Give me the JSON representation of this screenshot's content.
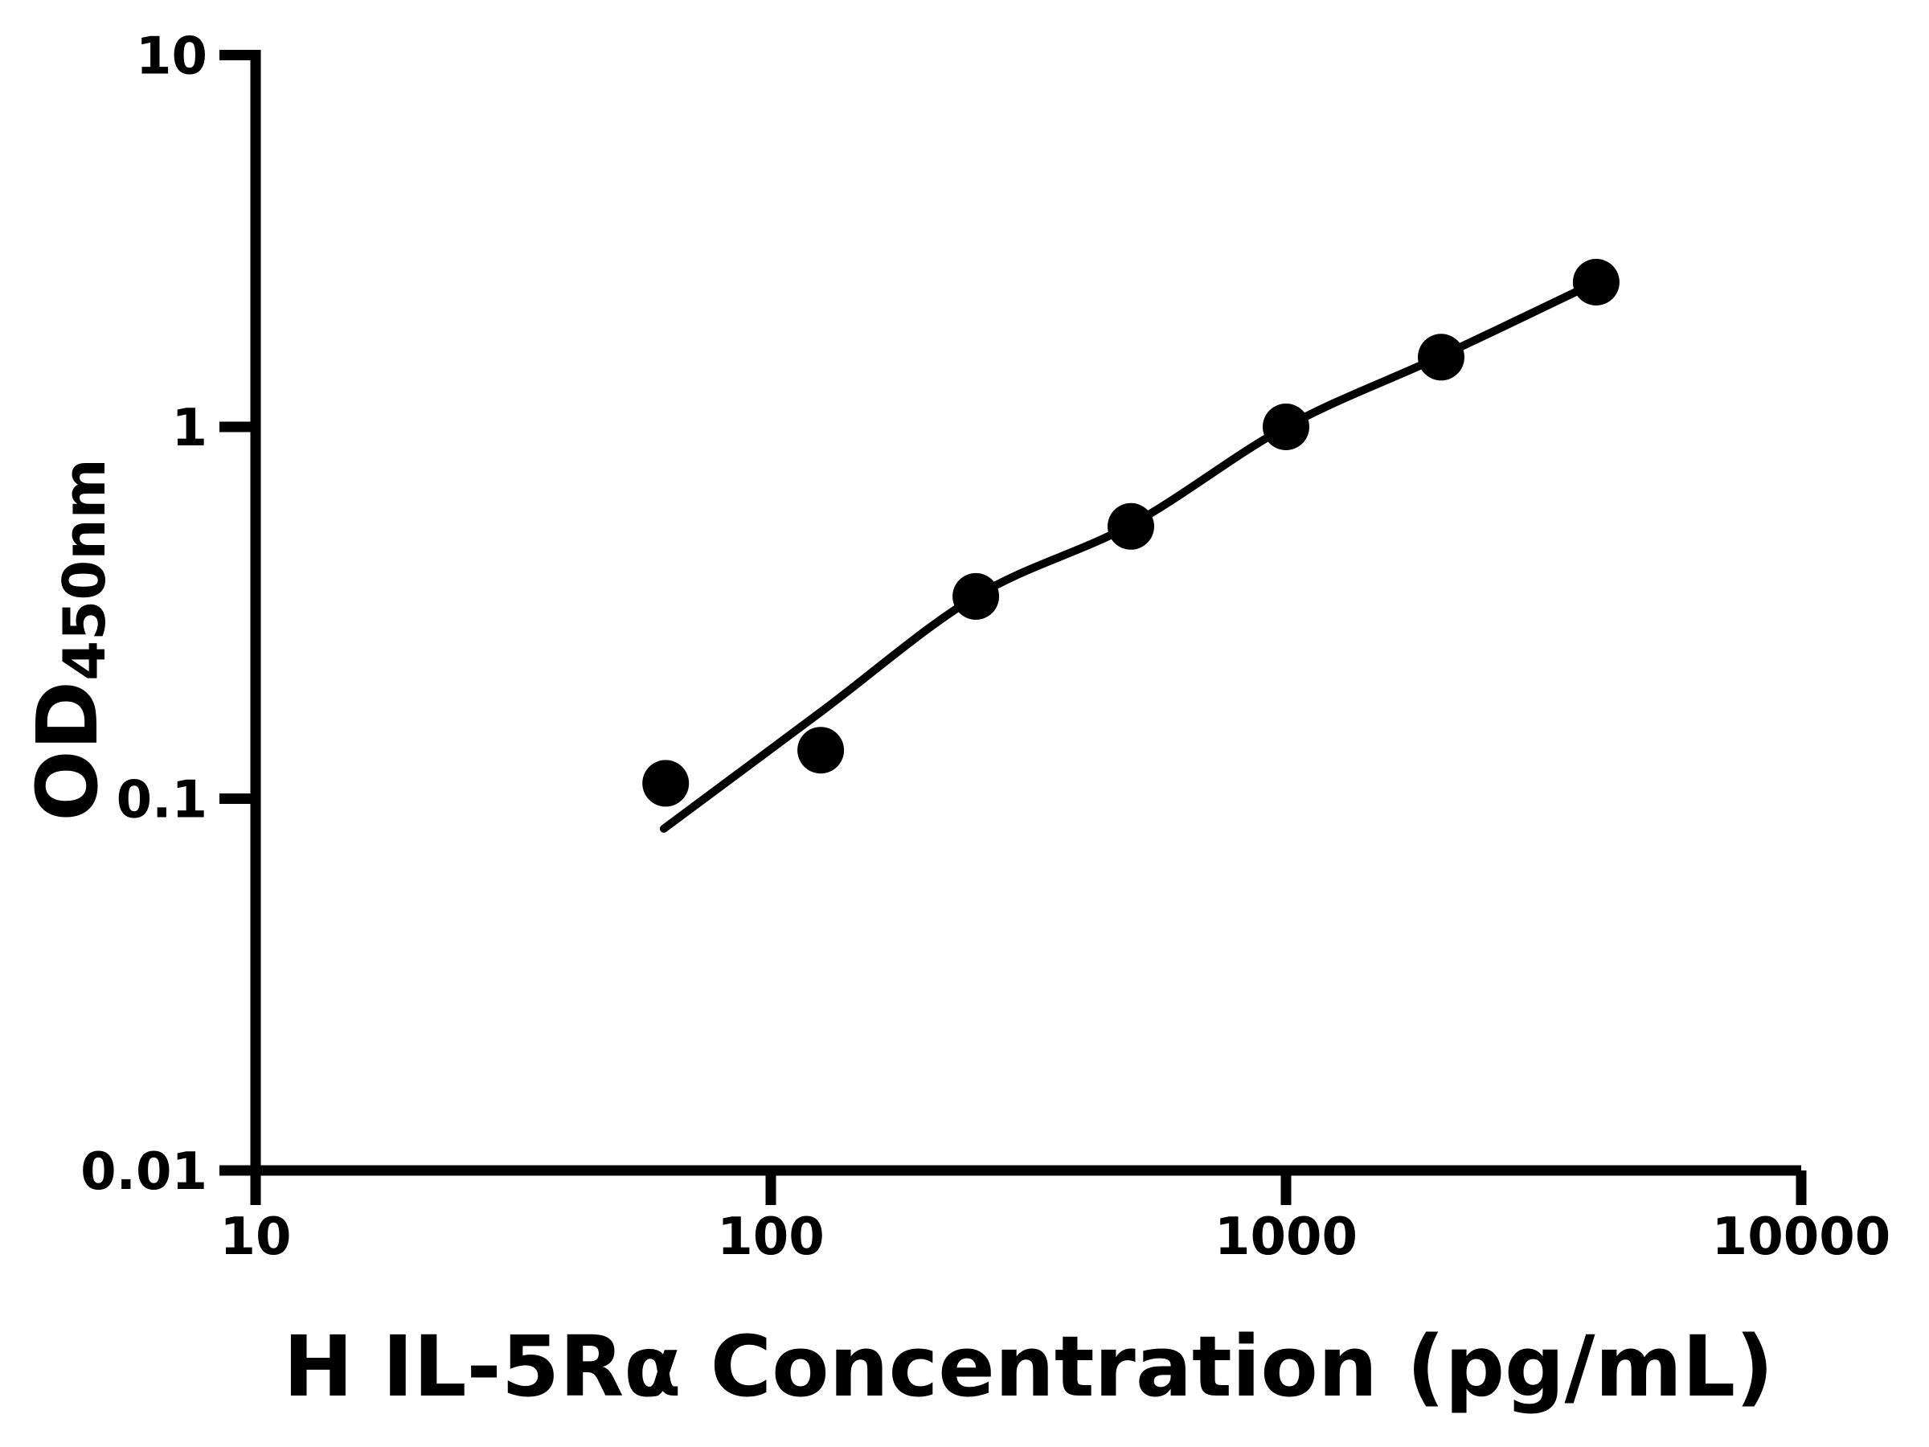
{
  "figure": {
    "background_color": "#ffffff",
    "foreground_color": "#000000"
  },
  "chart_data": {
    "type": "scatter",
    "title": "",
    "xlabel": "H IL-5Rα Concentration (pg/mL)",
    "ylabel": "OD450nm",
    "ylabel_main": "OD",
    "ylabel_sub": "450nm",
    "x_scale": "log",
    "y_scale": "log",
    "xlim": [
      10,
      10000
    ],
    "ylim": [
      0.01,
      10
    ],
    "grid": false,
    "legend_position": "none",
    "x_ticks": [
      {
        "value": 10,
        "label": "10"
      },
      {
        "value": 100,
        "label": "100"
      },
      {
        "value": 1000,
        "label": "1000"
      },
      {
        "value": 10000,
        "label": "10000"
      }
    ],
    "y_ticks": [
      {
        "value": 10,
        "label": "10"
      },
      {
        "value": 1,
        "label": "1"
      },
      {
        "value": 0.1,
        "label": "0.1"
      },
      {
        "value": 0.01,
        "label": "0.01"
      }
    ],
    "series": [
      {
        "name": "standard-points",
        "type": "scatter",
        "marker": "filled-circle",
        "color": "#000000",
        "points": [
          [
            62.5,
            0.11
          ],
          [
            125,
            0.135
          ],
          [
            250,
            0.35
          ],
          [
            500,
            0.54
          ],
          [
            1000,
            1.0
          ],
          [
            2000,
            1.54
          ],
          [
            4000,
            2.45
          ]
        ]
      },
      {
        "name": "fit-curve",
        "type": "line",
        "color": "#000000",
        "points": [
          [
            62,
            0.083
          ],
          [
            125,
            0.171
          ],
          [
            250,
            0.35
          ],
          [
            500,
            0.545
          ],
          [
            1000,
            1.0
          ],
          [
            2000,
            1.55
          ],
          [
            4000,
            2.45
          ]
        ]
      }
    ]
  }
}
